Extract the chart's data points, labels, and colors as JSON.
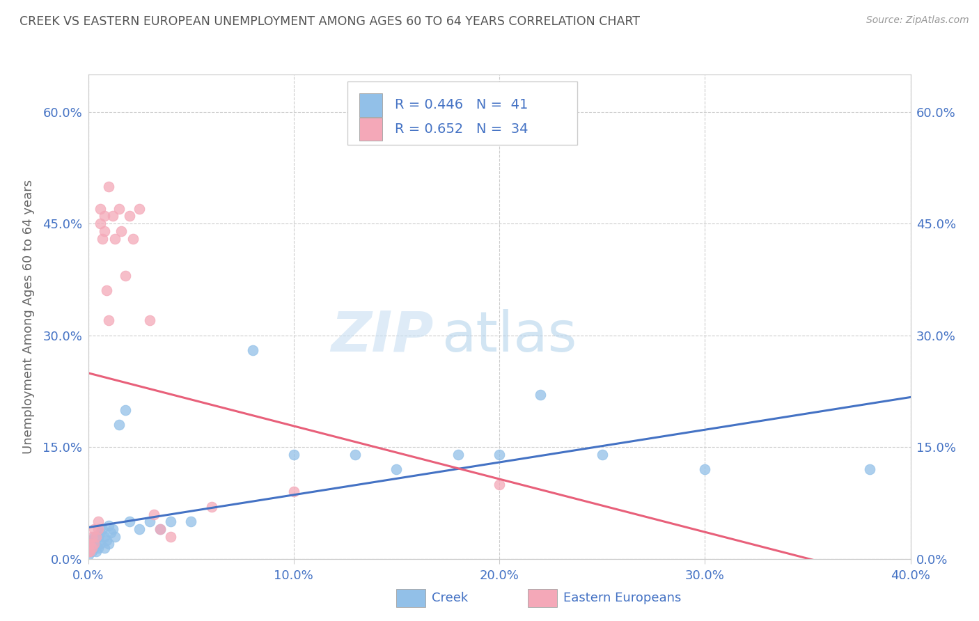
{
  "title": "CREEK VS EASTERN EUROPEAN UNEMPLOYMENT AMONG AGES 60 TO 64 YEARS CORRELATION CHART",
  "source": "Source: ZipAtlas.com",
  "ylabel": "Unemployment Among Ages 60 to 64 years",
  "xlim": [
    0.0,
    0.4
  ],
  "ylim": [
    0.0,
    0.65
  ],
  "xticks": [
    0.0,
    0.1,
    0.2,
    0.3,
    0.4
  ],
  "xticklabels": [
    "0.0%",
    "10.0%",
    "20.0%",
    "30.0%",
    "40.0%"
  ],
  "yticks": [
    0.0,
    0.15,
    0.3,
    0.45,
    0.6
  ],
  "yticklabels": [
    "0.0%",
    "15.0%",
    "30.0%",
    "45.0%",
    "60.0%"
  ],
  "creek_color": "#92c0e8",
  "eastern_color": "#f4a8b8",
  "creek_line_color": "#4472c4",
  "eastern_line_color": "#e8607a",
  "creek_R": 0.446,
  "creek_N": 41,
  "eastern_R": 0.652,
  "eastern_N": 34,
  "watermark_zip": "ZIP",
  "watermark_atlas": "atlas",
  "legend_label_creek": "Creek",
  "legend_label_eastern": "Eastern Europeans",
  "creek_x": [
    0.0,
    0.0,
    0.001,
    0.001,
    0.002,
    0.002,
    0.003,
    0.003,
    0.004,
    0.004,
    0.005,
    0.005,
    0.006,
    0.006,
    0.007,
    0.008,
    0.008,
    0.009,
    0.01,
    0.01,
    0.011,
    0.012,
    0.013,
    0.015,
    0.018,
    0.02,
    0.025,
    0.03,
    0.035,
    0.04,
    0.05,
    0.08,
    0.1,
    0.13,
    0.15,
    0.18,
    0.2,
    0.22,
    0.25,
    0.3,
    0.38
  ],
  "creek_y": [
    0.005,
    0.015,
    0.01,
    0.02,
    0.01,
    0.025,
    0.015,
    0.03,
    0.01,
    0.02,
    0.03,
    0.015,
    0.035,
    0.02,
    0.04,
    0.015,
    0.03,
    0.025,
    0.02,
    0.045,
    0.035,
    0.04,
    0.03,
    0.18,
    0.2,
    0.05,
    0.04,
    0.05,
    0.04,
    0.05,
    0.05,
    0.28,
    0.14,
    0.14,
    0.12,
    0.14,
    0.14,
    0.22,
    0.14,
    0.12,
    0.12
  ],
  "eastern_x": [
    0.0,
    0.0,
    0.001,
    0.001,
    0.002,
    0.002,
    0.003,
    0.003,
    0.004,
    0.005,
    0.005,
    0.006,
    0.006,
    0.007,
    0.008,
    0.008,
    0.009,
    0.01,
    0.01,
    0.012,
    0.013,
    0.015,
    0.016,
    0.018,
    0.02,
    0.022,
    0.025,
    0.03,
    0.032,
    0.035,
    0.04,
    0.06,
    0.1,
    0.2
  ],
  "eastern_y": [
    0.01,
    0.02,
    0.01,
    0.02,
    0.015,
    0.03,
    0.02,
    0.04,
    0.03,
    0.04,
    0.05,
    0.47,
    0.45,
    0.43,
    0.46,
    0.44,
    0.36,
    0.5,
    0.32,
    0.46,
    0.43,
    0.47,
    0.44,
    0.38,
    0.46,
    0.43,
    0.47,
    0.32,
    0.06,
    0.04,
    0.03,
    0.07,
    0.09,
    0.1
  ],
  "background_color": "#ffffff",
  "grid_color": "#cccccc",
  "title_color": "#555555",
  "axis_label_color": "#666666",
  "tick_color": "#4472c4",
  "legend_text_color": "#4472c4"
}
